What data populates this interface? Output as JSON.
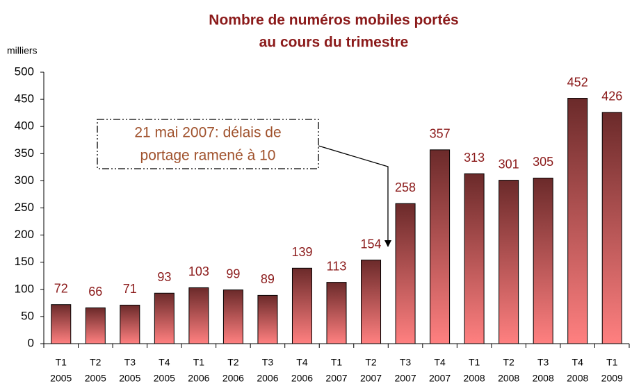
{
  "chart_data": {
    "type": "bar",
    "title": [
      "Nombre de numéros mobiles portés",
      "au cours du trimestre"
    ],
    "y_axis_label": "milliers",
    "categories": [
      [
        "T1",
        "2005"
      ],
      [
        "T2",
        "2005"
      ],
      [
        "T3",
        "2005"
      ],
      [
        "T4",
        "2005"
      ],
      [
        "T1",
        "2006"
      ],
      [
        "T2",
        "2006"
      ],
      [
        "T3",
        "2006"
      ],
      [
        "T4",
        "2006"
      ],
      [
        "T1",
        "2007"
      ],
      [
        "T2",
        "2007"
      ],
      [
        "T3",
        "2007"
      ],
      [
        "T4",
        "2007"
      ],
      [
        "T1",
        "2008"
      ],
      [
        "T2",
        "2008"
      ],
      [
        "T3",
        "2008"
      ],
      [
        "T4",
        "2008"
      ],
      [
        "T1",
        "2009"
      ]
    ],
    "values": [
      72,
      66,
      71,
      93,
      103,
      99,
      89,
      139,
      113,
      154,
      258,
      357,
      313,
      301,
      305,
      452,
      426
    ],
    "color_top": "#6b2a2a",
    "color_bottom": "#ff8080",
    "ylim": [
      0,
      500
    ],
    "yticks": [
      0,
      50,
      100,
      150,
      200,
      250,
      300,
      350,
      400,
      450,
      500
    ],
    "annotation": [
      "21 mai 2007: délais de",
      "portage ramené à 10"
    ]
  }
}
